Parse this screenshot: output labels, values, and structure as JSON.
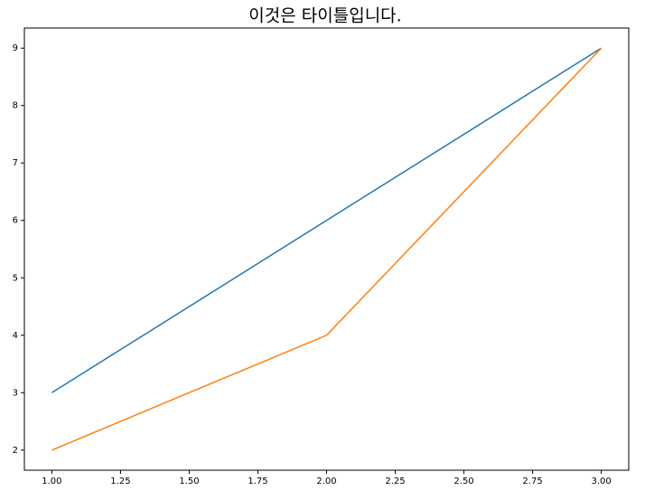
{
  "chart_data": {
    "type": "line",
    "title": "이것은 타이틀입니다.",
    "x": [
      1,
      2,
      3
    ],
    "series": [
      {
        "color": "#1f77b4",
        "values": [
          3,
          6,
          9
        ]
      },
      {
        "color": "#ff7f0e",
        "values": [
          2,
          4,
          9
        ]
      }
    ],
    "xlim": [
      0.9,
      3.1
    ],
    "xticks": [
      {
        "value": 1,
        "label": "1.00"
      },
      {
        "value": 1.25,
        "label": "1.25"
      },
      {
        "value": 1.5,
        "label": "1.50"
      },
      {
        "value": 1.75,
        "label": "1.75"
      },
      {
        "value": 2,
        "label": "2.00"
      },
      {
        "value": 2.25,
        "label": "2.25"
      },
      {
        "value": 2.5,
        "label": "2.50"
      },
      {
        "value": 2.75,
        "label": "2.75"
      },
      {
        "value": 3,
        "label": "3.00"
      }
    ],
    "ylim": [
      1.65,
      9.35
    ],
    "yticks": [
      2,
      3,
      4,
      5,
      6,
      7,
      8,
      9
    ]
  }
}
